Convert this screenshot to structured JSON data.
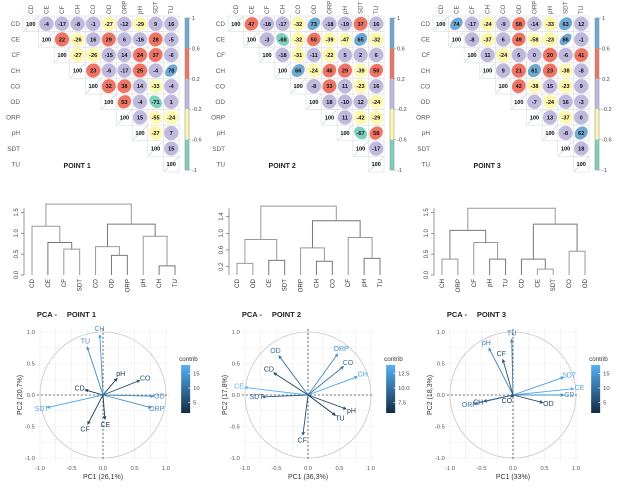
{
  "chart_data": {
    "correlation_matrices": [
      {
        "type": "heatmap",
        "title": "POINT 1",
        "variables": [
          "CD",
          "CE",
          "CF",
          "CH",
          "CO",
          "OD",
          "ORP",
          "pH",
          "SDT",
          "TU"
        ],
        "matrix_upper": [
          [
            100,
            -4,
            -17,
            -8,
            -1,
            -27,
            -12,
            -29,
            9,
            16
          ],
          [
            100,
            22,
            -26,
            16,
            29,
            6,
            -16,
            28,
            -5
          ],
          [
            100,
            -27,
            -26,
            -15,
            14,
            24,
            37,
            -6
          ],
          [
            100,
            23,
            -6,
            -17,
            25,
            -4,
            78
          ],
          [
            100,
            32,
            38,
            14,
            -33,
            -4
          ],
          [
            100,
            53,
            -4,
            -71,
            1
          ],
          [
            100,
            15,
            -55,
            -24
          ],
          [
            100,
            -27,
            7
          ],
          [
            100,
            15
          ],
          [
            100
          ]
        ],
        "colorbar": {
          "ticks": [
            "1",
            "0.6",
            "0.2",
            "-0.2",
            "-0.6",
            "-1"
          ]
        }
      },
      {
        "type": "heatmap",
        "title": "POINT 2",
        "variables": [
          "CD",
          "CE",
          "CF",
          "CH",
          "CO",
          "OD",
          "ORP",
          "pH",
          "SDT",
          "TU"
        ],
        "matrix_upper": [
          [
            100,
            47,
            -18,
            -17,
            -32,
            73,
            -18,
            -19,
            37,
            16
          ],
          [
            100,
            -3,
            -68,
            -32,
            50,
            -39,
            -47,
            65,
            -32
          ],
          [
            100,
            -18,
            -31,
            -11,
            -22,
            5,
            2,
            6
          ],
          [
            100,
            66,
            -24,
            46,
            29,
            -39,
            50
          ],
          [
            100,
            -8,
            33,
            11,
            -23,
            16
          ],
          [
            100,
            18,
            -10,
            12,
            -24
          ],
          [
            100,
            11,
            -42,
            -29
          ],
          [
            100,
            -67,
            58
          ],
          [
            100,
            -17
          ],
          [
            100
          ]
        ],
        "colorbar": {
          "ticks": [
            "1",
            "0.6",
            "0.2",
            "-0.2",
            "-0.6",
            "-1"
          ]
        }
      },
      {
        "type": "heatmap",
        "title": "POINT 3",
        "variables": [
          "CD",
          "CE",
          "CF",
          "CH",
          "CO",
          "OD",
          "ORP",
          "pH",
          "SDT",
          "TU"
        ],
        "matrix_upper": [
          [
            100,
            74,
            -17,
            -24,
            -9,
            58,
            -14,
            -33,
            63,
            12
          ],
          [
            100,
            -8,
            -37,
            6,
            49,
            -58,
            -23,
            86,
            -1
          ],
          [
            100,
            11,
            -24,
            6,
            0,
            20,
            -6,
            41
          ],
          [
            100,
            9,
            21,
            61,
            23,
            -38,
            -8
          ],
          [
            100,
            42,
            -38,
            15,
            -23,
            9
          ],
          [
            100,
            -7,
            -24,
            16,
            -3
          ],
          [
            100,
            13,
            -37,
            0
          ],
          [
            100,
            -8,
            62
          ],
          [
            100,
            18
          ],
          [
            100
          ]
        ],
        "colorbar": {
          "ticks": [
            "1",
            "0.6",
            "0.2",
            "-0.2",
            "-0.6",
            "-1"
          ]
        }
      }
    ],
    "dendrograms": [
      {
        "type": "dendrogram",
        "leaves": [
          "CD",
          "CE",
          "CF",
          "SDT",
          "CO",
          "OD",
          "ORP",
          "pH",
          "CH",
          "TU"
        ],
        "yticks": [
          "0.0",
          "0.5",
          "1.0",
          "1.5"
        ],
        "ylim": [
          0,
          1.75
        ],
        "merges": [
          {
            "a": "L2",
            "b": "L3",
            "h": 0.62
          },
          {
            "a": "L1",
            "b": "M0",
            "h": 0.78
          },
          {
            "a": "L0",
            "b": "M1",
            "h": 1.17
          },
          {
            "a": "L5",
            "b": "L6",
            "h": 0.47
          },
          {
            "a": "L4",
            "b": "M3",
            "h": 0.68
          },
          {
            "a": "L8",
            "b": "L9",
            "h": 0.22
          },
          {
            "a": "L7",
            "b": "M5",
            "h": 0.93
          },
          {
            "a": "M4",
            "b": "M6",
            "h": 1.22
          },
          {
            "a": "M2",
            "b": "M7",
            "h": 1.7
          }
        ]
      },
      {
        "type": "dendrogram",
        "leaves": [
          "CD",
          "OD",
          "CE",
          "SDT",
          "ORP",
          "CH",
          "CO",
          "CF",
          "pH",
          "TU"
        ],
        "yticks": [
          "0.2",
          "0.6",
          "1.0",
          "1.4"
        ],
        "ylim": [
          0,
          1.75
        ],
        "merges": [
          {
            "a": "L0",
            "b": "L1",
            "h": 0.28
          },
          {
            "a": "L2",
            "b": "L3",
            "h": 0.35
          },
          {
            "a": "M0",
            "b": "M1",
            "h": 0.85
          },
          {
            "a": "L5",
            "b": "L6",
            "h": 0.33
          },
          {
            "a": "L4",
            "b": "M3",
            "h": 0.65
          },
          {
            "a": "L8",
            "b": "L9",
            "h": 0.4
          },
          {
            "a": "L7",
            "b": "M5",
            "h": 0.9
          },
          {
            "a": "M4",
            "b": "M6",
            "h": 1.3
          },
          {
            "a": "M2",
            "b": "M7",
            "h": 1.65
          }
        ]
      },
      {
        "type": "dendrogram",
        "leaves": [
          "CH",
          "ORP",
          "CF",
          "pH",
          "TU",
          "CD",
          "CE",
          "SDT",
          "CO",
          "OD"
        ],
        "yticks": [
          "0.0",
          "0.5",
          "1.0",
          "1.5"
        ],
        "ylim": [
          0,
          1.75
        ],
        "merges": [
          {
            "a": "L0",
            "b": "L1",
            "h": 0.38
          },
          {
            "a": "L3",
            "b": "L4",
            "h": 0.38
          },
          {
            "a": "L2",
            "b": "M1",
            "h": 0.78
          },
          {
            "a": "M0",
            "b": "M2",
            "h": 1.07
          },
          {
            "a": "L6",
            "b": "L7",
            "h": 0.14
          },
          {
            "a": "L5",
            "b": "M4",
            "h": 0.38
          },
          {
            "a": "L8",
            "b": "L9",
            "h": 0.57
          },
          {
            "a": "M5",
            "b": "M6",
            "h": 1.22
          },
          {
            "a": "M3",
            "b": "M7",
            "h": 1.6
          }
        ]
      }
    ],
    "pca_biplots": [
      {
        "type": "scatter",
        "title_prefix": "PCA -",
        "title": "POINT 1",
        "xlabel": "PC1 (26,1%)",
        "ylabel": "PC2 (20,7%)",
        "xlim": [
          -1,
          1
        ],
        "ylim": [
          -1,
          1
        ],
        "xticks": [
          "-1.0",
          "-0.5",
          "0.0",
          "0.5",
          "1.0"
        ],
        "yticks": [
          "1.0",
          "0.5",
          "0.0",
          "-0.5",
          "-1.0"
        ],
        "legend_title": "contrib",
        "legend_ticks": [
          "15",
          "10",
          "5"
        ],
        "contrib_range": [
          2,
          19
        ],
        "legend_position": "right",
        "vectors": [
          {
            "name": "CH",
            "x": -0.05,
            "y": 0.95,
            "contrib": 16
          },
          {
            "name": "TU",
            "x": -0.25,
            "y": 0.76,
            "contrib": 14
          },
          {
            "name": "CO",
            "x": 0.58,
            "y": 0.23,
            "contrib": 8
          },
          {
            "name": "pH",
            "x": 0.22,
            "y": 0.26,
            "contrib": 3
          },
          {
            "name": "OD",
            "x": 0.8,
            "y": -0.02,
            "contrib": 15
          },
          {
            "name": "ORP",
            "x": 0.76,
            "y": -0.2,
            "contrib": 14
          },
          {
            "name": "CD",
            "x": -0.28,
            "y": 0.08,
            "contrib": 3
          },
          {
            "name": "SDT",
            "x": -0.88,
            "y": -0.2,
            "contrib": 18
          },
          {
            "name": "CF",
            "x": -0.24,
            "y": -0.46,
            "contrib": 5
          },
          {
            "name": "CE",
            "x": 0.03,
            "y": -0.38,
            "contrib": 4
          }
        ]
      },
      {
        "type": "scatter",
        "title_prefix": "PCA -",
        "title": "POINT 2",
        "xlabel": "PC1 (36,3%)",
        "ylabel": "PC2 (17,8%)",
        "xlim": [
          -1,
          1
        ],
        "ylim": [
          -1,
          1
        ],
        "xticks": [
          "-1.0",
          "-0.5",
          "0.0",
          "0.5",
          "1.0"
        ],
        "yticks": [
          "1.0",
          "0.5",
          "0.0",
          "-0.5",
          "-1.0"
        ],
        "legend_title": "contrib",
        "legend_ticks": [
          "12.5",
          "10.0",
          "7.5"
        ],
        "contrib_range": [
          5.5,
          14
        ],
        "legend_position": "right",
        "vectors": [
          {
            "name": "ORP",
            "x": 0.47,
            "y": 0.65,
            "contrib": 12
          },
          {
            "name": "CO",
            "x": 0.56,
            "y": 0.45,
            "contrib": 10
          },
          {
            "name": "CH",
            "x": 0.78,
            "y": 0.29,
            "contrib": 13
          },
          {
            "name": "pH",
            "x": 0.6,
            "y": -0.22,
            "contrib": 7
          },
          {
            "name": "TU",
            "x": 0.43,
            "y": -0.32,
            "contrib": 6
          },
          {
            "name": "CF",
            "x": -0.08,
            "y": -0.63,
            "contrib": 8
          },
          {
            "name": "SDT",
            "x": -0.72,
            "y": -0.03,
            "contrib": 9
          },
          {
            "name": "CE",
            "x": -1.0,
            "y": 0.12,
            "contrib": 14
          },
          {
            "name": "CD",
            "x": -0.54,
            "y": 0.35,
            "contrib": 7
          },
          {
            "name": "OD",
            "x": -0.46,
            "y": 0.62,
            "contrib": 10
          }
        ]
      },
      {
        "type": "scatter",
        "title_prefix": "PCA -",
        "title": "POINT 3",
        "xlabel": "PC1 (33%)",
        "ylabel": "PC2 (18,3%)",
        "xlim": [
          -1,
          1
        ],
        "ylim": [
          -1,
          1
        ],
        "xticks": [
          "-1.0",
          "-0.5",
          "0.0",
          "0.5",
          "1.0"
        ],
        "yticks": [
          "1.0",
          "0.5",
          "0.0",
          "-0.5",
          "-1.0"
        ],
        "legend_title": "contrib",
        "legend_ticks": [
          "15",
          "10",
          "5"
        ],
        "contrib_range": [
          1,
          19
        ],
        "legend_position": "right",
        "vectors": [
          {
            "name": "TU",
            "x": -0.02,
            "y": 0.88,
            "contrib": 12
          },
          {
            "name": "pH",
            "x": -0.38,
            "y": 0.74,
            "contrib": 13
          },
          {
            "name": "CF",
            "x": -0.16,
            "y": 0.56,
            "contrib": 6
          },
          {
            "name": "SDT",
            "x": 0.8,
            "y": 0.28,
            "contrib": 16
          },
          {
            "name": "CE",
            "x": 0.96,
            "y": 0.1,
            "contrib": 18
          },
          {
            "name": "CD",
            "x": 0.8,
            "y": 0.0,
            "contrib": 14
          },
          {
            "name": "OD",
            "x": 0.47,
            "y": -0.12,
            "contrib": 5
          },
          {
            "name": "CO",
            "x": -0.03,
            "y": -0.03,
            "contrib": 2
          },
          {
            "name": "CH",
            "x": -0.46,
            "y": -0.1,
            "contrib": 3
          },
          {
            "name": "ORP",
            "x": -0.6,
            "y": -0.14,
            "contrib": 11
          }
        ]
      }
    ]
  }
}
